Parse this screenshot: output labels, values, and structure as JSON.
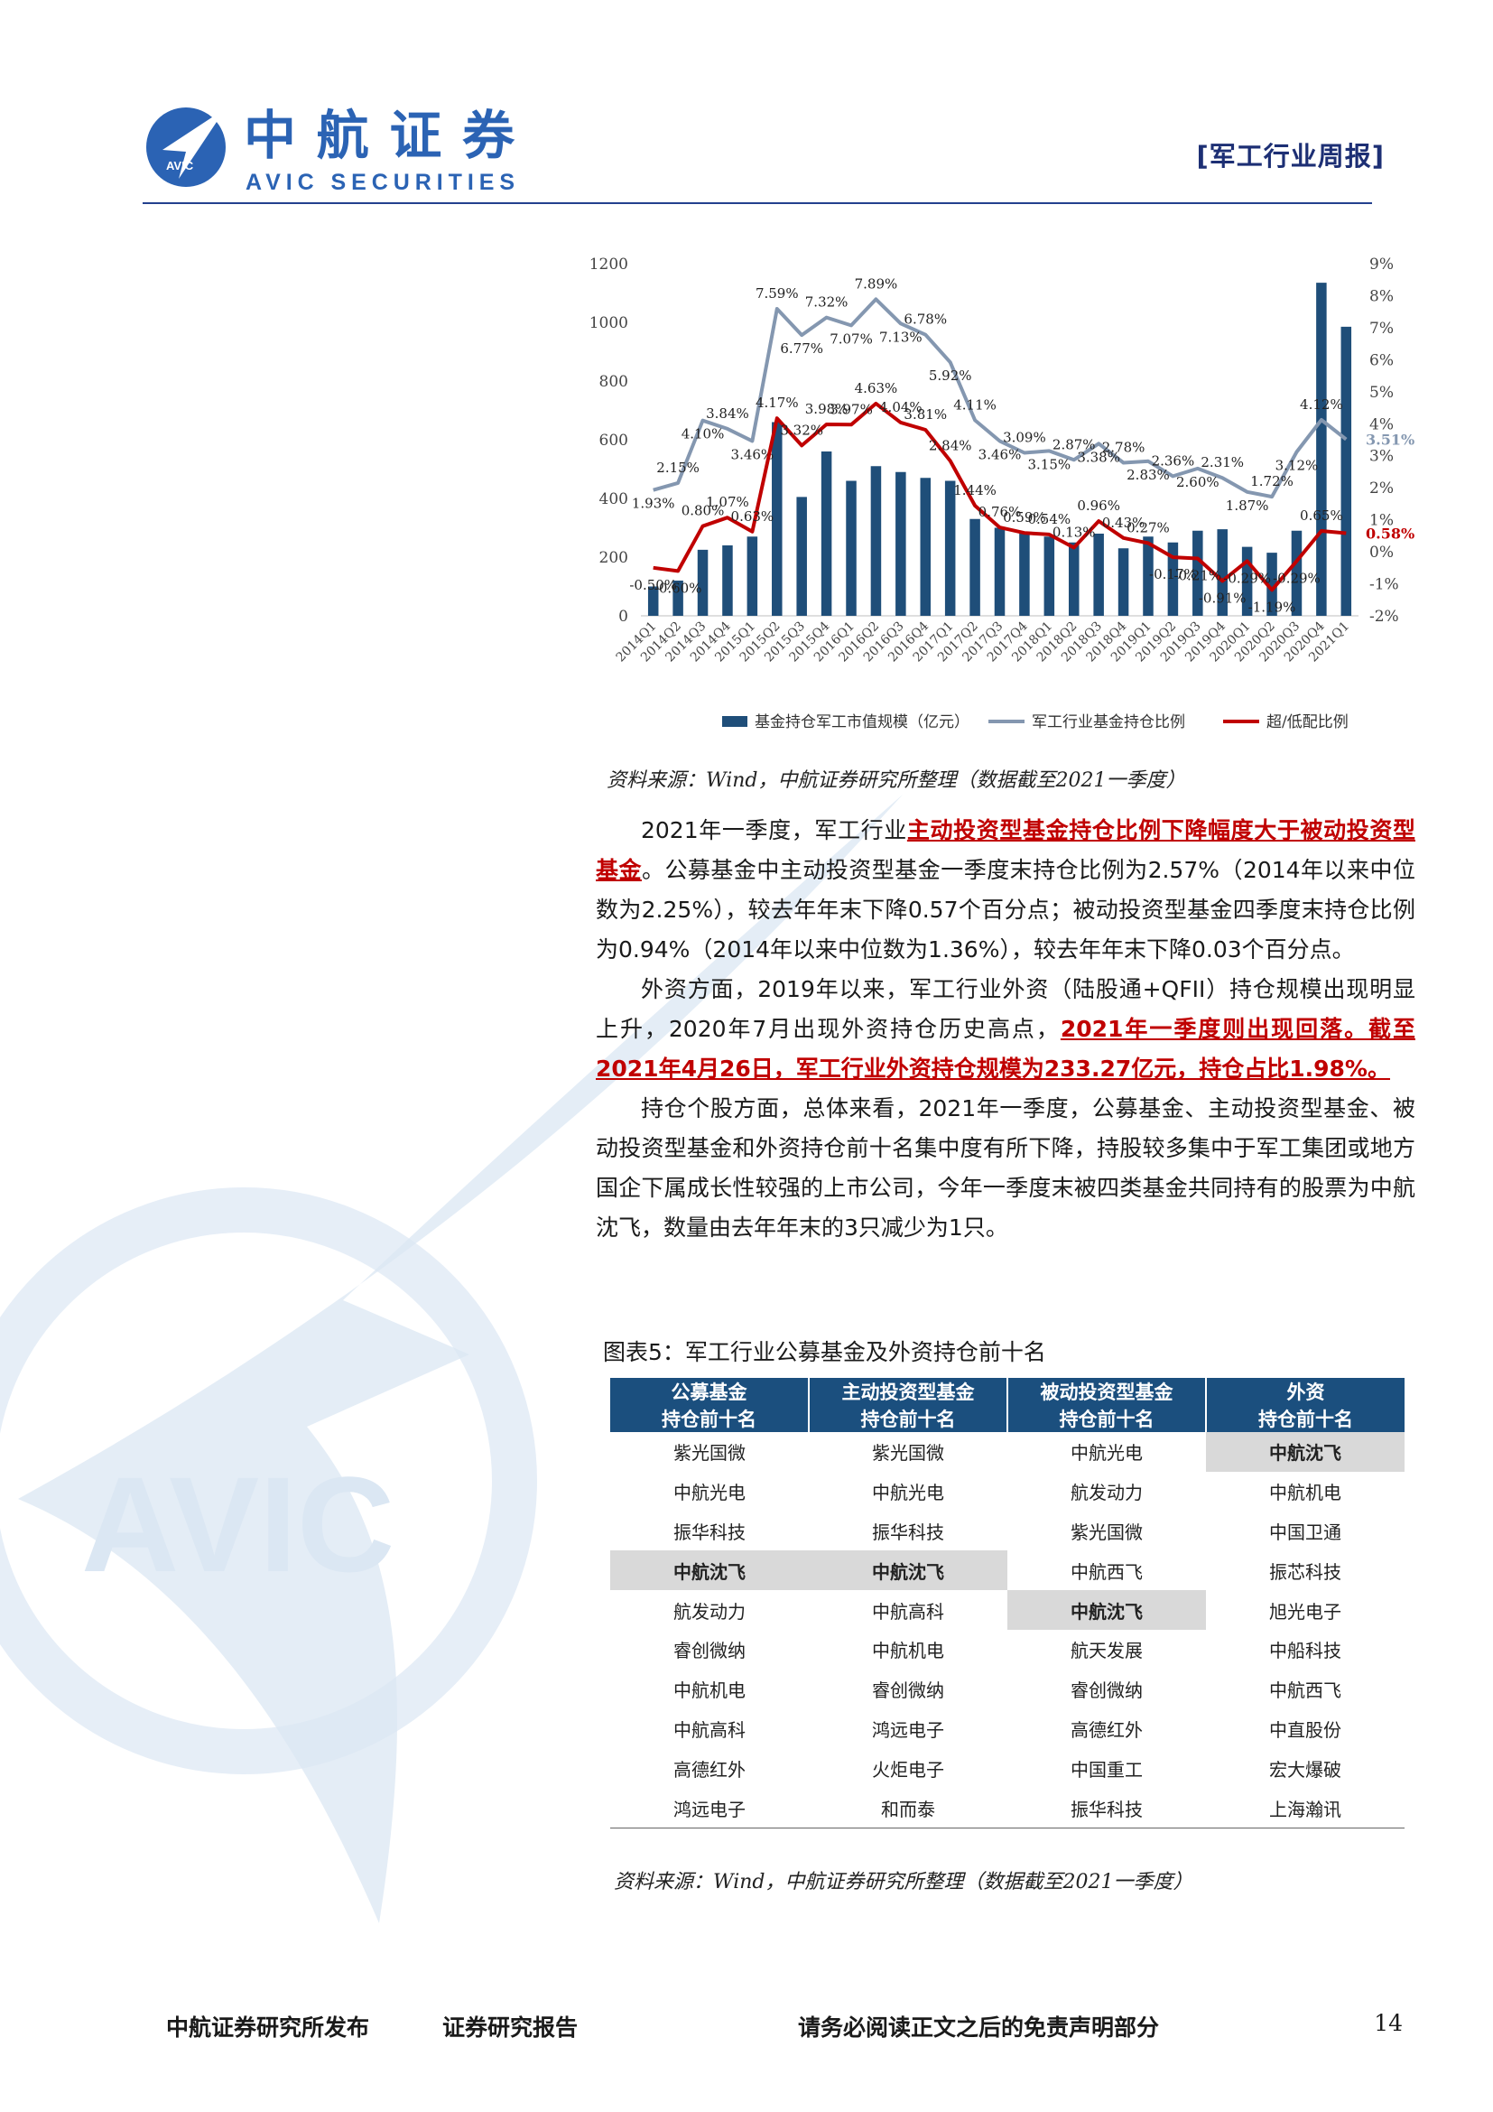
{
  "header": {
    "logo_cn": "中航证券",
    "logo_en": "AVIC SECURITIES",
    "logo_badge": "AVIC",
    "report_tag": "[军工行业周报]"
  },
  "watermark": {
    "text": "AVIC"
  },
  "chart_data": {
    "type": "bar+line",
    "categories": [
      "2014Q1",
      "2014Q2",
      "2014Q3",
      "2014Q4",
      "2015Q1",
      "2015Q2",
      "2015Q3",
      "2015Q4",
      "2016Q1",
      "2016Q2",
      "2016Q3",
      "2016Q4",
      "2017Q1",
      "2017Q2",
      "2017Q3",
      "2017Q4",
      "2018Q1",
      "2018Q2",
      "2018Q3",
      "2018Q4",
      "2019Q1",
      "2019Q2",
      "2019Q3",
      "2019Q4",
      "2020Q1",
      "2020Q2",
      "2020Q3",
      "2020Q4",
      "2021Q1"
    ],
    "bars": {
      "name": "基金持仓军工市值规模（亿元）",
      "axis": "left",
      "color": "#1f4e79",
      "values": [
        100,
        120,
        225,
        240,
        270,
        660,
        405,
        560,
        460,
        510,
        490,
        470,
        460,
        330,
        300,
        280,
        270,
        250,
        280,
        230,
        270,
        250,
        290,
        295,
        235,
        215,
        290,
        1135,
        985
      ]
    },
    "lines": [
      {
        "name": "军工行业基金持仓比例",
        "axis": "right",
        "color": "#8497b0",
        "values": [
          1.93,
          2.15,
          4.1,
          3.84,
          3.46,
          7.59,
          6.77,
          7.32,
          7.07,
          7.89,
          7.13,
          6.78,
          5.92,
          4.11,
          3.46,
          3.09,
          3.15,
          2.87,
          3.38,
          2.78,
          2.83,
          2.36,
          2.6,
          2.31,
          1.87,
          1.72,
          3.12,
          4.12,
          3.51
        ],
        "labels": [
          "1.93%",
          "2.15%",
          "4.10%",
          "3.84%",
          "3.46%",
          "7.59%",
          "6.77%",
          "7.32%",
          "7.07%",
          "7.89%",
          "7.13%",
          "6.78%",
          "5.92%",
          "4.11%",
          "3.46%",
          "3.09%",
          "3.15%",
          "2.87%",
          "3.38%",
          "2.78%",
          "2.83%",
          "2.36%",
          "2.60%",
          "2.31%",
          "1.87%",
          "1.72%",
          "3.12%",
          "4.12%",
          "3.51%"
        ]
      },
      {
        "name": "超/低配比例",
        "axis": "right",
        "color": "#c00000",
        "values": [
          -0.5,
          -0.6,
          0.8,
          1.07,
          0.63,
          4.17,
          3.32,
          3.98,
          3.97,
          4.63,
          4.04,
          3.81,
          2.84,
          1.44,
          0.76,
          0.59,
          0.54,
          0.13,
          0.96,
          0.43,
          0.27,
          -0.17,
          -0.21,
          -0.91,
          -0.29,
          -1.19,
          -0.29,
          0.65,
          0.58
        ],
        "labels": [
          "-0.50%",
          "-0.60%",
          "0.80%",
          "1.07%",
          "0.63%",
          "4.17%",
          "3.32%",
          "3.98%",
          "3.97%",
          "4.63%",
          "4.04%",
          "3.81%",
          "2.84%",
          "1.44%",
          "0.76%",
          "0.59%",
          "0.54%",
          "0.13%",
          "0.96%",
          "0.43%",
          "0.27%",
          "-0.17%",
          "-0.21%",
          "-0.91%",
          "-0.29%",
          "-1.19%",
          "-0.29%",
          "0.65%",
          "0.58%"
        ]
      }
    ],
    "y_left": {
      "min": 0,
      "max": 1200,
      "ticks": [
        0,
        200,
        400,
        600,
        800,
        1000,
        1200
      ]
    },
    "y_right": {
      "min": -2,
      "max": 9,
      "ticks": [
        "-2%",
        "-1%",
        "0%",
        "1%",
        "2%",
        "3%",
        "4%",
        "5%",
        "6%",
        "7%",
        "8%",
        "9%"
      ]
    },
    "legend_position": "bottom",
    "grid": false
  },
  "chart_source": "资料来源：Wind，中航证券研究所整理（数据截至2021一季度）",
  "body": {
    "p1_a": "2021年一季度，军工行业",
    "p1_b": "主动投资型基金持仓比例下降幅度大于被动投资型基金",
    "p1_c": "。公募基金中主动投资型基金一季度末持仓比例为2.57%（2014年以来中位数为2.25%），较去年年末下降0.57个百分点；被动投资型基金四季度末持仓比例为0.94%（2014年以来中位数为1.36%），较去年年末下降0.03个百分点。",
    "p2_a": "外资方面，2019年以来，军工行业外资（陆股通+QFII）持仓规模出现明显上升，2020年7月出现外资持仓历史高点，",
    "p2_b": "2021年一季度则出现回落。截至2021年4月26日，军工行业外资持仓规模为233.27亿元，持仓占比1.98%。",
    "p3": "持仓个股方面，总体来看，2021年一季度，公募基金、主动投资型基金、被动投资型基金和外资持仓前十名集中度有所下降，持股较多集中于军工集团或地方国企下属成长性较强的上市公司，今年一季度末被四类基金共同持有的股票为中航沈飞，数量由去年年末的3只减少为1只。"
  },
  "table": {
    "caption": "图表5：军工行业公募基金及外资持仓前十名",
    "headers": [
      {
        "line1": "公募基金",
        "line2": "持仓前十名"
      },
      {
        "line1": "主动投资型基金",
        "line2": "持仓前十名"
      },
      {
        "line1": "被动投资型基金",
        "line2": "持仓前十名"
      },
      {
        "line1": "外资",
        "line2": "持仓前十名"
      }
    ],
    "rows": [
      [
        "紫光国微",
        "紫光国微",
        "中航光电",
        "中航沈飞"
      ],
      [
        "中航光电",
        "中航光电",
        "航发动力",
        "中航机电"
      ],
      [
        "振华科技",
        "振华科技",
        "紫光国微",
        "中国卫通"
      ],
      [
        "中航沈飞",
        "中航沈飞",
        "中航西飞",
        "振芯科技"
      ],
      [
        "航发动力",
        "中航高科",
        "中航沈飞",
        "旭光电子"
      ],
      [
        "睿创微纳",
        "中航机电",
        "航天发展",
        "中船科技"
      ],
      [
        "中航机电",
        "睿创微纳",
        "睿创微纳",
        "中航西飞"
      ],
      [
        "中航高科",
        "鸿远电子",
        "高德红外",
        "中直股份"
      ],
      [
        "高德红外",
        "火炬电子",
        "中国重工",
        "宏大爆破"
      ],
      [
        "鸿远电子",
        "和而泰",
        "振华科技",
        "上海瀚讯"
      ]
    ],
    "highlight": "中航沈飞",
    "source": "资料来源：Wind，中航证券研究所整理（数据截至2021一季度）"
  },
  "footer": {
    "publisher": "中航证券研究所发布",
    "type": "证券研究报告",
    "disclaimer": "请务必阅读正文之后的免责声明部分",
    "page": "14"
  }
}
